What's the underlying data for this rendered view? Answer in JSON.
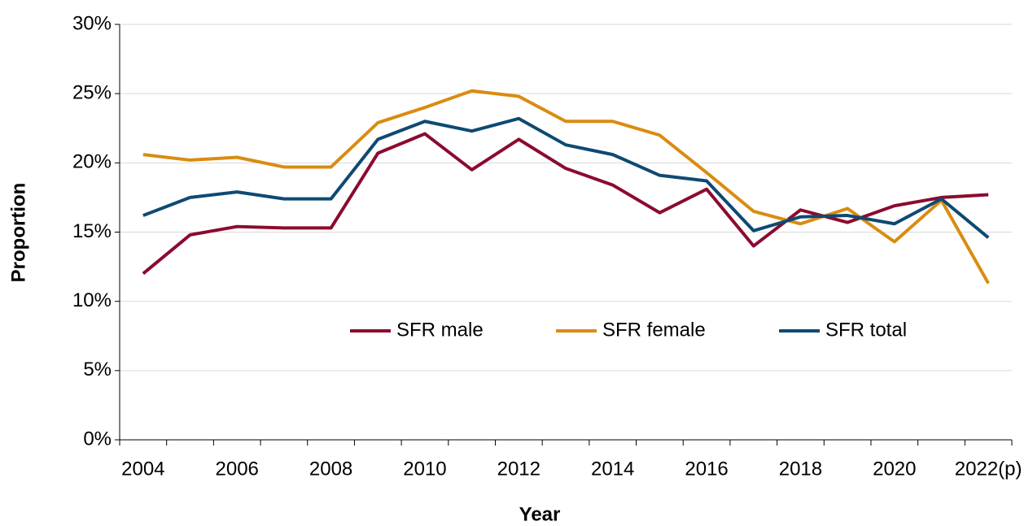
{
  "chart_data": {
    "type": "line",
    "x_label": "Year",
    "y_label": "Proportion",
    "categories": [
      "2004",
      null,
      "2006",
      null,
      "2008",
      null,
      "2010",
      null,
      "2012",
      null,
      "2014",
      null,
      "2016",
      null,
      "2018",
      null,
      "2020",
      null,
      "2022(p)"
    ],
    "series": [
      {
        "name": "SFR male",
        "color": "#8b0b2f",
        "values": [
          12.0,
          14.8,
          15.4,
          15.3,
          15.3,
          20.7,
          22.1,
          19.5,
          21.7,
          19.6,
          18.4,
          16.4,
          18.1,
          14.0,
          16.6,
          15.7,
          16.9,
          17.5,
          17.7
        ]
      },
      {
        "name": "SFR female",
        "color": "#d98c12",
        "values": [
          20.6,
          20.2,
          20.4,
          19.7,
          19.7,
          22.9,
          24.0,
          25.2,
          24.8,
          23.0,
          23.0,
          22.0,
          19.3,
          16.5,
          15.6,
          16.7,
          14.3,
          17.3,
          11.3
        ]
      },
      {
        "name": "SFR total",
        "color": "#0e4a72",
        "values": [
          16.2,
          17.5,
          17.9,
          17.4,
          17.4,
          21.7,
          23.0,
          22.3,
          23.2,
          21.3,
          20.6,
          19.1,
          18.7,
          15.1,
          16.1,
          16.2,
          15.6,
          17.4,
          14.6
        ]
      }
    ],
    "ylim": [
      0,
      30
    ],
    "yticks": [
      {
        "value": 0,
        "label": "0%"
      },
      {
        "value": 5,
        "label": "5%"
      },
      {
        "value": 10,
        "label": "10%"
      },
      {
        "value": 15,
        "label": "15%"
      },
      {
        "value": 20,
        "label": "20%"
      },
      {
        "value": 25,
        "label": "25%"
      },
      {
        "value": 30,
        "label": "30%"
      }
    ],
    "grid": true,
    "legend": "center"
  }
}
